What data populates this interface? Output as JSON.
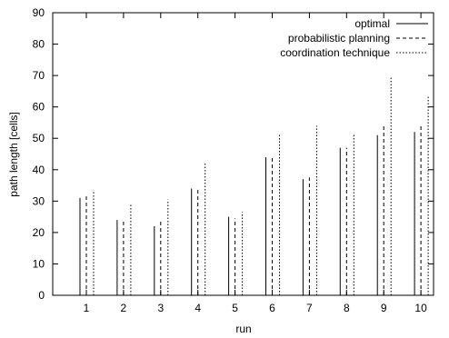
{
  "chart_data": {
    "type": "bar",
    "title": "",
    "xlabel": "run",
    "ylabel": "path length [cells]",
    "categories": [
      "1",
      "2",
      "3",
      "4",
      "5",
      "6",
      "7",
      "8",
      "9",
      "10"
    ],
    "ylim": [
      0,
      90
    ],
    "yticks": [
      0,
      10,
      20,
      30,
      40,
      50,
      60,
      70,
      80,
      90
    ],
    "grid": false,
    "legend_position": "top-right",
    "series": [
      {
        "name": "optimal",
        "line_style": "solid",
        "values": [
          31,
          24,
          22,
          34,
          25,
          44,
          37,
          47,
          51,
          52
        ]
      },
      {
        "name": "probabilistic planning",
        "line_style": "dashed",
        "values": [
          31.5,
          23.5,
          24,
          33.5,
          24.5,
          44,
          37.5,
          47,
          54,
          54
        ]
      },
      {
        "name": "coordination technique",
        "line_style": "dotted",
        "values": [
          33.5,
          29,
          30.5,
          42,
          26.5,
          51.5,
          54,
          51.5,
          69.5,
          63.5
        ]
      }
    ]
  }
}
